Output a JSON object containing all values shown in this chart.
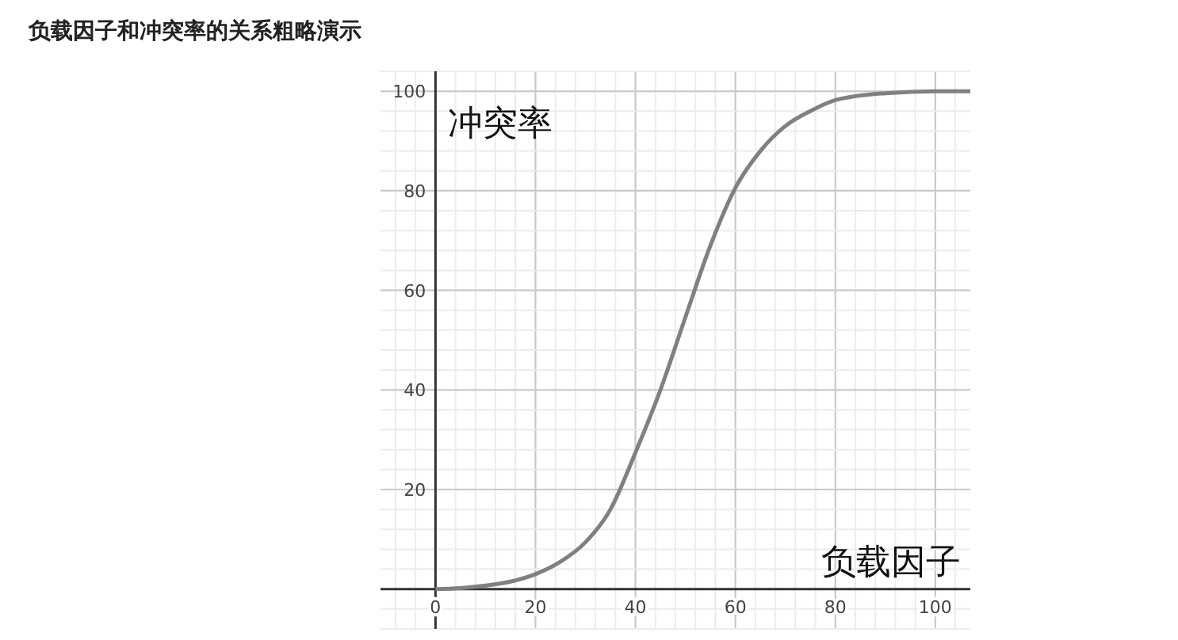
{
  "chart_data": {
    "type": "line",
    "title": "负载因子和冲突率的关系粗略演示",
    "xlabel": "负载因子",
    "ylabel": "冲突率",
    "x": [
      0,
      5,
      10,
      15,
      20,
      25,
      30,
      35,
      40,
      45,
      50,
      55,
      60,
      65,
      70,
      75,
      80,
      90,
      100,
      107
    ],
    "series": [
      {
        "color": "#808080",
        "values": [
          0,
          0.2,
          0.7,
          1.5,
          3,
          5.5,
          9.4,
          16,
          27.4,
          40,
          54.6,
          69,
          80.6,
          88,
          93,
          96,
          98.2,
          99.6,
          100,
          100
        ]
      }
    ],
    "xlim": [
      -11,
      107
    ],
    "ylim": [
      -8,
      104
    ],
    "xticks": [
      0,
      20,
      40,
      60,
      80,
      100
    ],
    "yticks": [
      20,
      40,
      60,
      80,
      100
    ],
    "grid": true,
    "marker": "none",
    "line_style": "solid"
  }
}
